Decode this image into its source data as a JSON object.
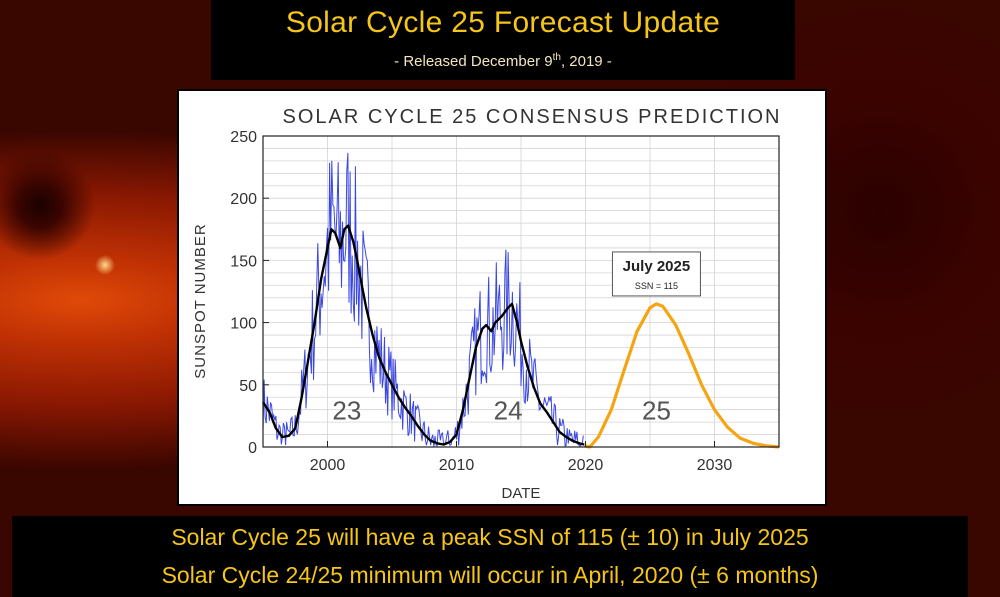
{
  "header": {
    "title": "Solar Cycle 25 Forecast Update",
    "subtitle_prefix": "- Released December 9",
    "subtitle_sup": "th",
    "subtitle_suffix": ", 2019 -"
  },
  "footer": {
    "line1": "Solar Cycle 25 will have a peak SSN of 115 (± 10) in July 2025",
    "line2": "Solar Cycle 24/25 minimum will occur in April, 2020 (± 6 months)"
  },
  "colors": {
    "title_text": "#f5c518",
    "monthly_series": "#3b48e0",
    "smoothed_series": "#000000",
    "prediction_series": "#f5a412"
  },
  "chart_data": {
    "type": "line",
    "title": "SOLAR CYCLE 25 CONSENSUS PREDICTION",
    "xlabel": "DATE",
    "ylabel": "SUNSPOT NUMBER",
    "xlim": [
      1995,
      2035
    ],
    "ylim": [
      0,
      250
    ],
    "x_ticks": [
      2000,
      2010,
      2020,
      2030
    ],
    "y_ticks": [
      0,
      50,
      100,
      150,
      200,
      250
    ],
    "grid": true,
    "cycle_labels": [
      {
        "text": "23",
        "x": 2001.5,
        "y": 22
      },
      {
        "text": "24",
        "x": 2014,
        "y": 22
      },
      {
        "text": "25",
        "x": 2025.5,
        "y": 22
      }
    ],
    "annotation": {
      "title": "July 2025",
      "text": "SSN = 115",
      "x": 2025.5,
      "y": 115
    },
    "series": [
      {
        "x": [
          1995.0,
          1995.5,
          1996.0,
          1996.5,
          1997.0,
          1997.5,
          1998.0,
          1998.5,
          1999.0,
          1999.5,
          2000.0,
          2000.3,
          2000.6,
          2001.0,
          2001.3,
          2001.6,
          2002.0,
          2002.3,
          2002.7,
          2003.0,
          2003.5,
          2004.0,
          2004.5,
          2005.0,
          2005.5,
          2006.0,
          2006.5,
          2007.0,
          2007.5,
          2008.0,
          2008.5,
          2009.0,
          2009.5,
          2010.0,
          2010.5,
          2011.0,
          2011.5,
          2012.0,
          2012.3,
          2012.7,
          2013.0,
          2013.5,
          2014.0,
          2014.3,
          2014.7,
          2015.0,
          2015.5,
          2016.0,
          2016.5,
          2017.0,
          2017.5,
          2018.0,
          2018.5,
          2019.0,
          2019.5,
          2019.9
        ],
        "y": [
          36,
          28,
          15,
          8,
          9,
          15,
          40,
          70,
          100,
          135,
          160,
          175,
          172,
          160,
          175,
          178,
          165,
          150,
          128,
          112,
          90,
          72,
          60,
          50,
          40,
          32,
          25,
          17,
          10,
          5,
          3,
          2,
          4,
          10,
          30,
          55,
          80,
          95,
          98,
          93,
          100,
          105,
          112,
          115,
          100,
          85,
          65,
          48,
          35,
          28,
          20,
          12,
          8,
          5,
          3,
          2
        ]
      },
      {
        "x": [
          2019.9,
          2020.33,
          2021,
          2022,
          2023,
          2024,
          2025,
          2025.5,
          2026,
          2027,
          2028,
          2029,
          2030,
          2031,
          2032,
          2033,
          2034,
          2035
        ],
        "y": [
          1,
          0,
          8,
          30,
          62,
          93,
          112,
          115,
          113,
          98,
          75,
          50,
          30,
          16,
          7,
          3,
          1,
          0
        ]
      }
    ]
  }
}
